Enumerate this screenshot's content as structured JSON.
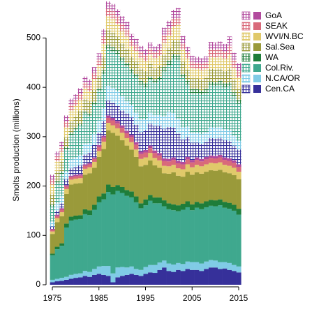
{
  "chart_data": {
    "type": "stacked-bar",
    "y_label": "Smolts production (millions)",
    "x": [
      1975,
      1976,
      1977,
      1978,
      1979,
      1980,
      1981,
      1982,
      1983,
      1984,
      1985,
      1986,
      1987,
      1988,
      1989,
      1990,
      1991,
      1992,
      1993,
      1994,
      1995,
      1996,
      1997,
      1998,
      1999,
      2000,
      2001,
      2002,
      2003,
      2004,
      2005,
      2006,
      2007,
      2008,
      2009,
      2010,
      2011,
      2012,
      2013,
      2014,
      2015
    ],
    "xlim": [
      1975,
      2015
    ],
    "xticks": [
      1975,
      1985,
      1995,
      2005,
      2015
    ],
    "ylim": [
      0,
      560
    ],
    "yticks": [
      0,
      100,
      200,
      300,
      400,
      500
    ],
    "series": [
      {
        "name": "Cen.CA",
        "color": "#36309a",
        "values": [
          5,
          7,
          8,
          10,
          12,
          14,
          15,
          18,
          16,
          20,
          22,
          20,
          18,
          5,
          15,
          18,
          20,
          22,
          20,
          18,
          22,
          25,
          24,
          30,
          35,
          28,
          26,
          30,
          28,
          32,
          30,
          30,
          28,
          32,
          35,
          35,
          32,
          33,
          30,
          28,
          25
        ],
        "hatched_values": [
          5,
          8,
          10,
          12,
          15,
          15,
          18,
          20,
          20,
          25,
          25,
          30,
          30,
          30,
          30,
          30,
          35,
          35,
          35,
          40,
          40,
          45,
          50,
          55,
          60,
          65,
          60,
          55,
          45,
          40,
          35,
          30,
          30,
          30,
          35,
          35,
          35,
          35,
          35,
          30,
          30
        ]
      },
      {
        "name": "N.CA/OR",
        "color": "#80cbe6",
        "values": [
          5,
          5,
          6,
          6,
          8,
          8,
          8,
          10,
          10,
          12,
          15,
          18,
          20,
          18,
          20,
          18,
          15,
          15,
          12,
          12,
          14,
          15,
          16,
          15,
          14,
          15,
          15,
          14,
          14,
          15,
          16,
          16,
          15,
          15,
          15,
          14,
          14,
          13,
          14,
          12,
          12
        ],
        "hatched_values": [
          10,
          15,
          15,
          15,
          18,
          20,
          20,
          22,
          20,
          22,
          25,
          25,
          30,
          30,
          30,
          30,
          25,
          25,
          25,
          25,
          22,
          22,
          22,
          22,
          25,
          30,
          30,
          30,
          25,
          22,
          20,
          20,
          20,
          20,
          22,
          22,
          22,
          22,
          22,
          20,
          18
        ]
      },
      {
        "name": "Col.Riv.",
        "color": "#3fa88e",
        "values": [
          50,
          60,
          65,
          100,
          110,
          110,
          110,
          115,
          115,
          120,
          130,
          135,
          150,
          160,
          155,
          150,
          145,
          140,
          135,
          125,
          125,
          130,
          125,
          120,
          110,
          110,
          110,
          105,
          110,
          110,
          105,
          110,
          110,
          110,
          110,
          110,
          115,
          110,
          110,
          110,
          105
        ],
        "hatched_values": [
          30,
          40,
          45,
          45,
          50,
          55,
          60,
          60,
          55,
          60,
          60,
          70,
          75,
          75,
          75,
          70,
          70,
          65,
          70,
          70,
          65,
          65,
          65,
          70,
          90,
          95,
          110,
          120,
          100,
          85,
          80,
          80,
          80,
          80,
          85,
          85,
          85,
          85,
          90,
          80,
          75
        ]
      },
      {
        "name": "WA",
        "color": "#1e7d3a",
        "values": [
          3,
          5,
          5,
          8,
          8,
          8,
          8,
          10,
          10,
          10,
          12,
          12,
          15,
          15,
          12,
          12,
          12,
          12,
          12,
          10,
          12,
          12,
          12,
          12,
          12,
          12,
          12,
          12,
          12,
          12,
          12,
          12,
          12,
          12,
          12,
          12,
          12,
          12,
          12,
          12,
          12
        ],
        "hatched_values": [
          5,
          5,
          5,
          5,
          5,
          5,
          5,
          5,
          5,
          5,
          5,
          8,
          8,
          8,
          8,
          8,
          8,
          8,
          8,
          8,
          8,
          8,
          8,
          8,
          10,
          10,
          10,
          10,
          8,
          8,
          8,
          8,
          8,
          8,
          8,
          8,
          8,
          8,
          8,
          8,
          8
        ]
      },
      {
        "name": "Sal.Sea",
        "color": "#9a9a3a",
        "values": [
          40,
          50,
          55,
          60,
          65,
          65,
          65,
          70,
          75,
          75,
          80,
          90,
          110,
          110,
          100,
          95,
          90,
          85,
          80,
          75,
          70,
          70,
          65,
          60,
          55,
          60,
          65,
          60,
          55,
          60,
          60,
          60,
          60,
          60,
          60,
          60,
          60,
          60,
          60,
          60,
          60
        ],
        "hatched_values": [
          20,
          20,
          20,
          20,
          22,
          22,
          25,
          25,
          25,
          25,
          25,
          28,
          30,
          30,
          28,
          28,
          28,
          25,
          25,
          25,
          25,
          25,
          22,
          22,
          25,
          25,
          28,
          30,
          25,
          22,
          22,
          22,
          22,
          22,
          25,
          25,
          25,
          25,
          28,
          25,
          22
        ]
      },
      {
        "name": "WVI/N.BC",
        "color": "#e0c96a",
        "values": [
          5,
          8,
          8,
          10,
          10,
          10,
          10,
          12,
          12,
          12,
          12,
          15,
          15,
          15,
          15,
          15,
          15,
          15,
          15,
          15,
          15,
          15,
          15,
          15,
          15,
          15,
          15,
          15,
          15,
          15,
          15,
          15,
          15,
          15,
          15,
          15,
          15,
          15,
          15,
          15,
          15
        ],
        "hatched_values": [
          20,
          20,
          20,
          20,
          22,
          22,
          22,
          22,
          20,
          22,
          22,
          25,
          28,
          28,
          25,
          25,
          25,
          22,
          22,
          22,
          20,
          20,
          20,
          20,
          25,
          25,
          28,
          30,
          25,
          22,
          22,
          20,
          20,
          20,
          25,
          25,
          25,
          25,
          28,
          25,
          22
        ]
      },
      {
        "name": "SEAK",
        "color": "#d96a7a",
        "values": [
          3,
          4,
          5,
          5,
          5,
          5,
          5,
          6,
          6,
          6,
          8,
          8,
          10,
          10,
          10,
          10,
          10,
          10,
          10,
          10,
          10,
          10,
          10,
          10,
          10,
          10,
          10,
          10,
          10,
          10,
          10,
          10,
          10,
          10,
          10,
          10,
          10,
          10,
          10,
          10,
          10
        ],
        "hatched_values": [
          10,
          10,
          10,
          12,
          12,
          12,
          12,
          12,
          12,
          12,
          12,
          15,
          15,
          15,
          15,
          15,
          15,
          12,
          12,
          12,
          12,
          12,
          12,
          12,
          15,
          15,
          15,
          15,
          12,
          12,
          12,
          12,
          12,
          12,
          15,
          15,
          15,
          15,
          18,
          15,
          15
        ]
      },
      {
        "name": "GoA",
        "color": "#b24a9e",
        "values": [
          2,
          3,
          3,
          3,
          3,
          3,
          3,
          3,
          3,
          3,
          4,
          4,
          5,
          5,
          5,
          5,
          5,
          5,
          5,
          5,
          5,
          5,
          5,
          5,
          5,
          5,
          5,
          5,
          5,
          5,
          5,
          5,
          5,
          5,
          5,
          5,
          5,
          5,
          5,
          5,
          5
        ],
        "hatched_values": [
          10,
          10,
          10,
          12,
          12,
          12,
          12,
          12,
          12,
          12,
          12,
          15,
          15,
          15,
          15,
          15,
          15,
          12,
          12,
          12,
          12,
          12,
          12,
          12,
          15,
          15,
          18,
          20,
          15,
          12,
          12,
          12,
          12,
          12,
          15,
          15,
          15,
          15,
          18,
          15,
          15
        ]
      }
    ]
  }
}
